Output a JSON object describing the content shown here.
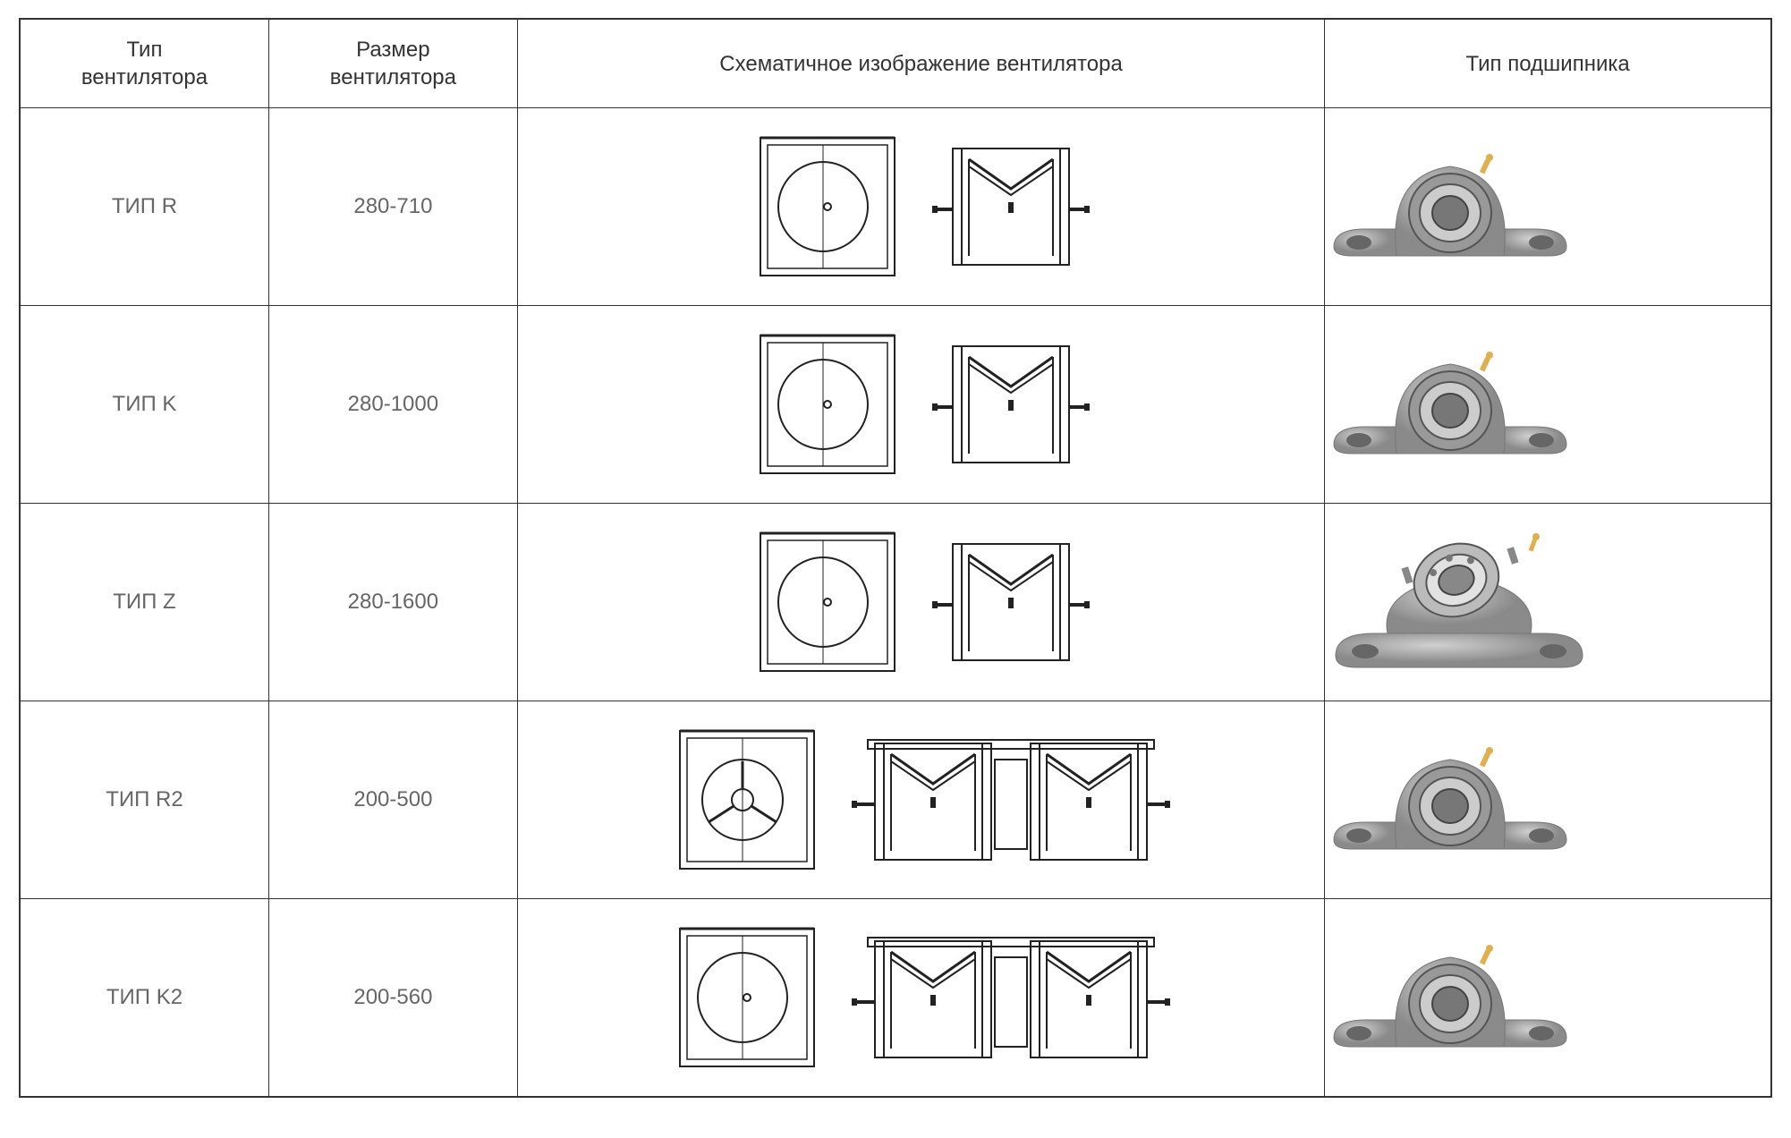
{
  "headers": {
    "type": "Тип\nвентилятора",
    "size": "Размер\nвентилятора",
    "diagram": "Схематичное изображение вентилятора",
    "bearing": "Тип подшипника"
  },
  "rows": [
    {
      "type_label": "ТИП R",
      "size_label": "280-710",
      "diagram_variant": "single",
      "bearing_variant": "pillow"
    },
    {
      "type_label": "ТИП K",
      "size_label": "280-1000",
      "diagram_variant": "single",
      "bearing_variant": "pillow"
    },
    {
      "type_label": "ТИП Z",
      "size_label": "280-1600",
      "diagram_variant": "single",
      "bearing_variant": "split"
    },
    {
      "type_label": "ТИП R2",
      "size_label": "200-500",
      "diagram_variant": "double_spoke",
      "bearing_variant": "pillow"
    },
    {
      "type_label": "ТИП K2",
      "size_label": "200-560",
      "diagram_variant": "double",
      "bearing_variant": "pillow"
    }
  ],
  "colors": {
    "stroke": "#222222",
    "bearing_body": "#b8b8b8",
    "bearing_body_light": "#d0d0d0",
    "bearing_body_dark": "#8a8a8a",
    "bearing_inner": "#555555",
    "grease_nipple": "#e0b050",
    "text": "#5a5a5a",
    "header_text": "#333333"
  }
}
